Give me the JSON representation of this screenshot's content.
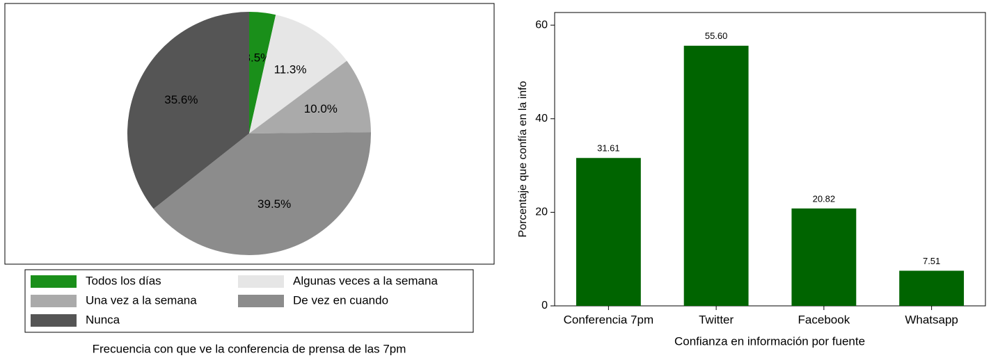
{
  "chart_data": [
    {
      "type": "pie",
      "caption": "Frecuencia con que ve la conferencia de prensa de las 7pm",
      "categories": [
        "Todos los días",
        "Algunas veces a la semana",
        "Una vez a la semana",
        "De vez en cuando",
        "Nunca"
      ],
      "values": [
        3.5,
        11.3,
        10.0,
        39.5,
        35.6
      ],
      "value_labels": [
        "3.5%",
        "11.3%",
        "10.0%",
        "39.5%",
        "35.6%"
      ],
      "colors": [
        "#1a8f1a",
        "#e6e6e6",
        "#aaaaaa",
        "#8c8c8c",
        "#555555"
      ]
    },
    {
      "type": "bar",
      "xlabel": "Confianza en información por fuente",
      "ylabel": "Porcentaje que confía en la info",
      "categories": [
        "Conferencia 7pm",
        "Twitter",
        "Facebook",
        "Whatsapp"
      ],
      "values": [
        31.61,
        55.6,
        20.82,
        7.51
      ],
      "value_labels": [
        "31.61",
        "55.60",
        "20.82",
        "7.51"
      ],
      "color": "#006400",
      "ylim": [
        0,
        62.7
      ],
      "yticks": [
        0,
        20,
        40,
        60
      ]
    }
  ]
}
